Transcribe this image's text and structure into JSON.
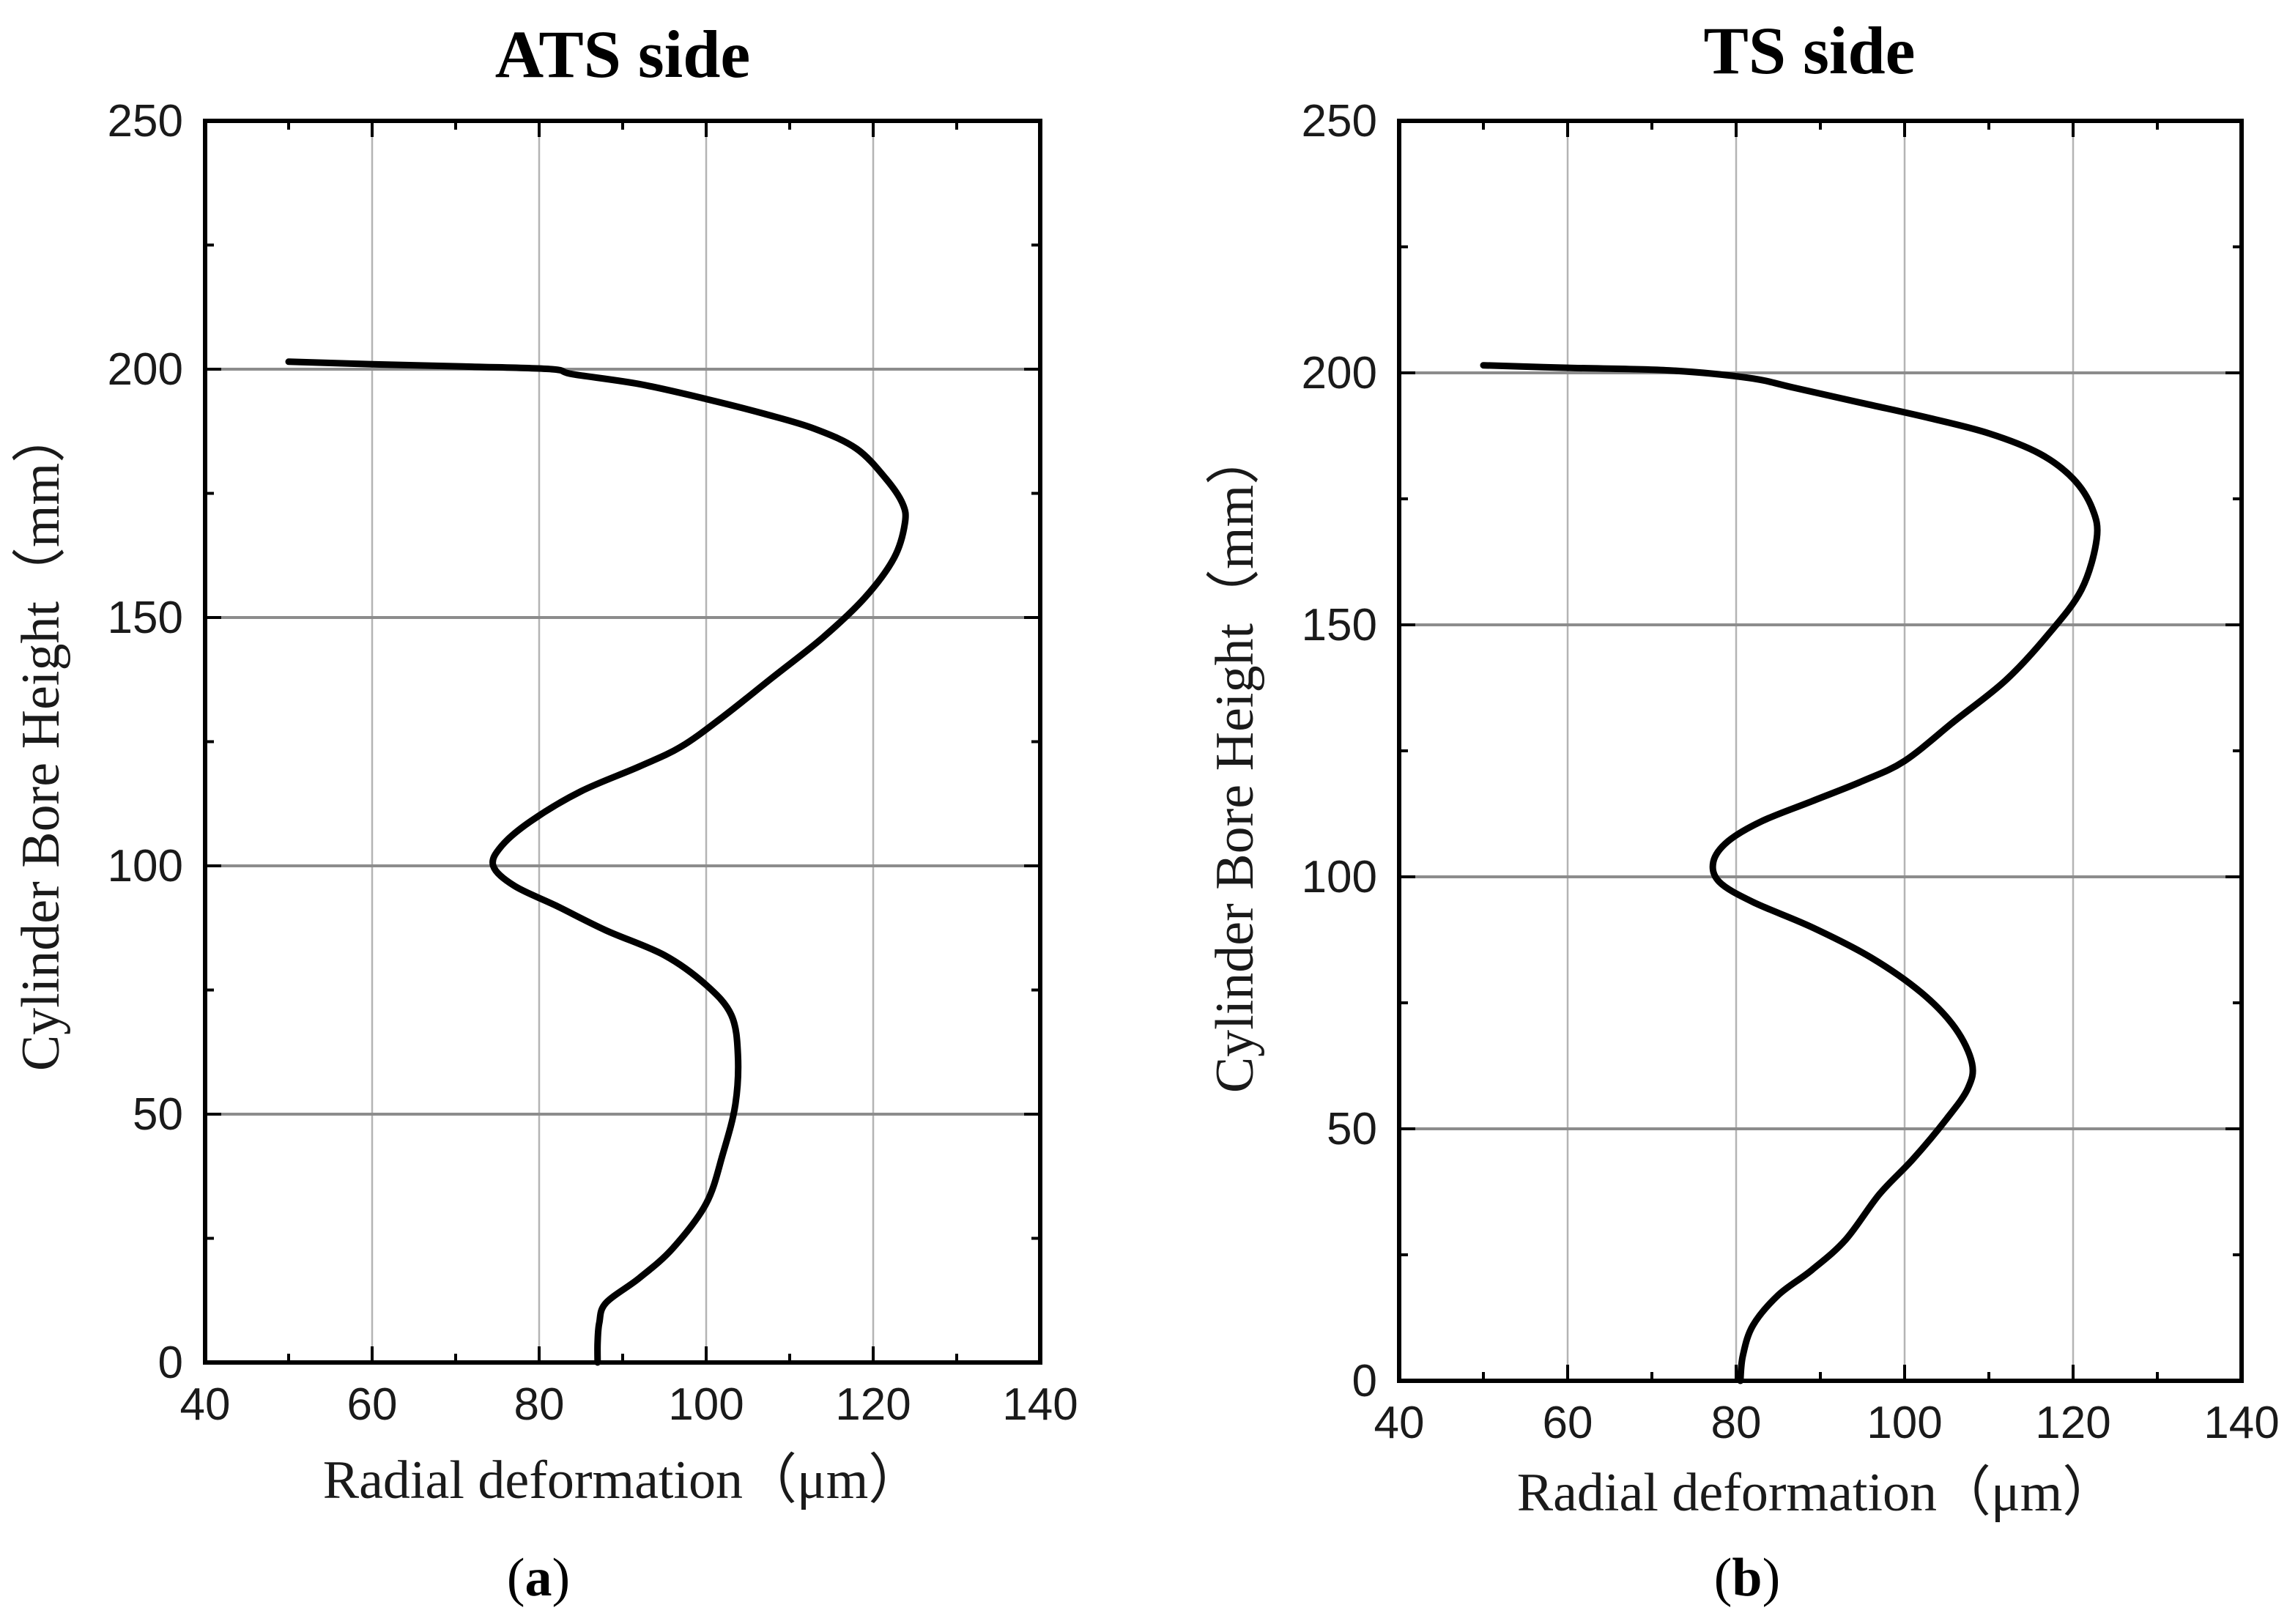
{
  "chart_data": [
    {
      "panel": "a",
      "caption_open": "(",
      "caption_letter": "a",
      "caption_close": ")",
      "type": "line",
      "title": "ATS side",
      "xlabel": "Radial deformation（μm）",
      "ylabel": "Cylinder Bore Height（mm）",
      "xlim": [
        40,
        140
      ],
      "ylim": [
        0,
        250
      ],
      "xticks": [
        40,
        60,
        80,
        100,
        120,
        140
      ],
      "yticks": [
        0,
        50,
        100,
        150,
        200,
        250
      ],
      "grid": true,
      "series": [
        {
          "name": "ATS side",
          "x": [
            87,
            87,
            87.2,
            88,
            92,
            96,
            100,
            102,
            103.5,
            103.8,
            103,
            100,
            95,
            88,
            82,
            77,
            74.5,
            75.5,
            79,
            85,
            92,
            97,
            102,
            108,
            114,
            119,
            122.5,
            123.8,
            123.5,
            121.5,
            118,
            113,
            107,
            100,
            92,
            84,
            81.5,
            72,
            60,
            50
          ],
          "y": [
            0,
            4,
            8,
            12,
            17,
            23,
            32,
            42,
            52,
            62,
            70,
            76,
            82,
            87,
            92,
            96,
            100,
            104,
            109,
            115,
            120,
            124,
            130,
            138,
            146,
            154,
            162,
            169,
            173,
            178,
            184,
            188,
            191,
            194,
            197,
            199,
            200,
            200.5,
            201,
            201.5
          ]
        }
      ]
    },
    {
      "panel": "b",
      "caption_open": "(",
      "caption_letter": "b",
      "caption_close": ")",
      "type": "line",
      "title": "TS side",
      "xlabel": "Radial deformation（μm）",
      "ylabel": "Cylinder Bore Height（mm）",
      "xlim": [
        40,
        140
      ],
      "ylim": [
        0,
        250
      ],
      "xticks": [
        40,
        60,
        80,
        100,
        120,
        140
      ],
      "yticks": [
        0,
        50,
        100,
        150,
        200,
        250
      ],
      "grid": true,
      "series": [
        {
          "name": "TS side",
          "x": [
            80.5,
            80.8,
            82,
            85,
            89,
            93,
            97,
            101,
            105,
            107.5,
            108,
            106,
            102,
            96,
            89,
            82,
            78,
            77.3,
            79,
            83,
            89,
            95,
            100,
            106,
            112,
            117,
            121,
            122.8,
            122.3,
            120,
            116,
            110,
            103,
            95,
            87,
            81.5,
            72,
            60,
            50
          ],
          "y": [
            0,
            5,
            11,
            17,
            22,
            28,
            37,
            44,
            52,
            58,
            63,
            70,
            77,
            84,
            90,
            95,
            99,
            103,
            107,
            111,
            115,
            119,
            123,
            131,
            139,
            148,
            157,
            167,
            173,
            179,
            184,
            188,
            191,
            194,
            197,
            199,
            200.5,
            201,
            201.5
          ]
        }
      ]
    }
  ]
}
